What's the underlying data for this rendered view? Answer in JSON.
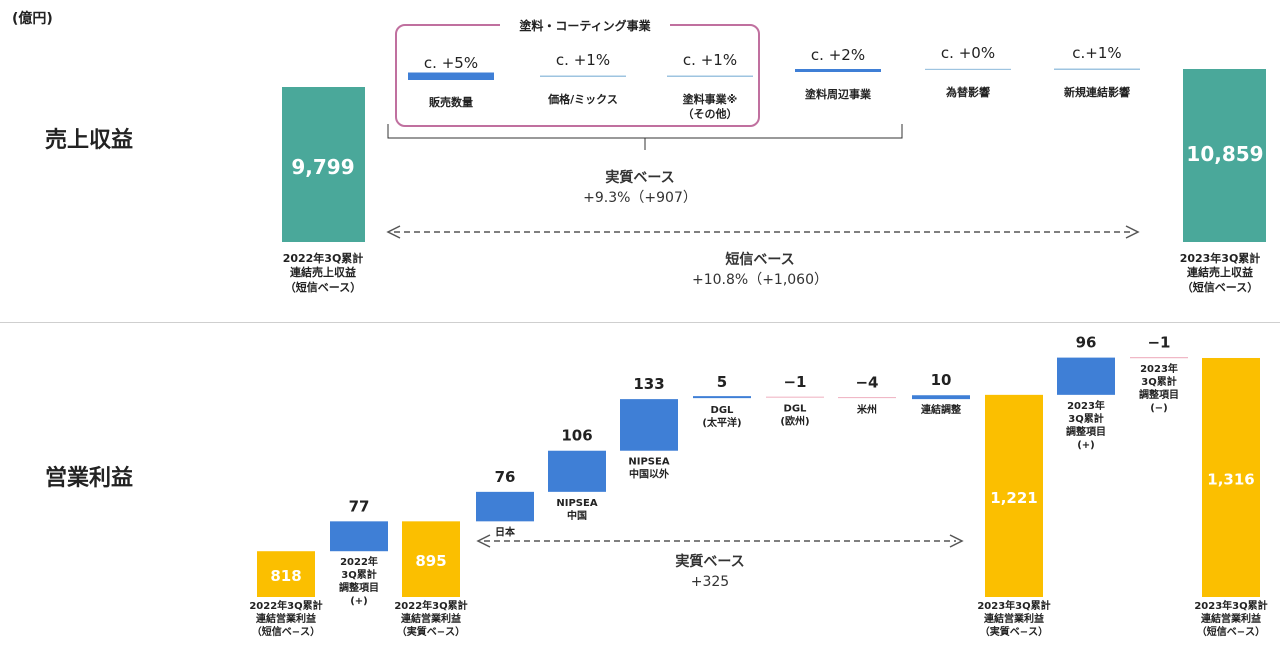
{
  "unit": "(億円)",
  "revenue": {
    "section_label": "売上収益",
    "group_title": "塗料・コーティング事業",
    "base_label": "実質ベース",
    "base_value": "+9.3%（+907）",
    "tanshin_label": "短信ベース",
    "tanshin_value": "+10.8%（+1,060）",
    "start_label": "2022年3Q累計\n連結売上収益\n（短信ベース）",
    "end_label": "2023年3Q累計\n連結売上収益\n（短信ベース）",
    "colors": {
      "total": "#4aa89a",
      "bar": "#3f7fd6",
      "line": "#9ec4e0",
      "border": "#c0709f"
    }
  },
  "profit": {
    "section_label": "営業利益",
    "base_label": "実質ベース",
    "base_value": "+325",
    "bar_labels": [
      "2022年3Q累計\n連結営業利益\n（短信ベ−ス）",
      "2022年\n3Q累計\n調整項目\n(+)",
      "2022年3Q累計\n連結営業利益\n（実質ベ−ス）",
      "日本",
      "NIPSEA\n中国",
      "NIPSEA\n中国以外",
      "DGL\n(太平洋)",
      "DGL\n(欧州)",
      "米州",
      "連結調整",
      "2023年3Q累計\n連結営業利益\n（実質ベ−ス）",
      "2023年\n3Q累計\n調整項目\n(+)",
      "2023年\n3Q累計\n調整項目\n(−)",
      "2023年3Q累計\n連結営業利益\n（短信ベ−ス）"
    ],
    "value_labels": [
      "818",
      "77",
      "895",
      "76",
      "106",
      "133",
      "5",
      "−1",
      "−4",
      "10",
      "1,221",
      "96",
      "−1",
      "1,316"
    ],
    "colors": {
      "total": "#fbbf00",
      "bar": "#3f7fd6",
      "neg_line": "#f0b8c6"
    }
  },
  "chart_data": [
    {
      "type": "bar",
      "title": "売上収益",
      "categories": [
        "2022年3Q累計 連結売上収益（短信ベース）",
        "販売数量",
        "価格/ミックス",
        "塗料事業※（その他）",
        "塗料周辺事業",
        "為替影響",
        "新規連結影響",
        "2023年3Q累計 連結売上収益（短信ベース）"
      ],
      "values": [
        9799,
        5,
        1,
        1,
        2,
        0,
        1,
        10859
      ],
      "value_labels": [
        "9,799",
        "c. +5%",
        "c. +1%",
        "c. +1%",
        "c. +2%",
        "c. +0%",
        "c.+1%",
        "10,859"
      ]
    },
    {
      "type": "bar",
      "title": "営業利益",
      "categories": [
        "2022年3Q累計 連結営業利益（短信ベ−ス）",
        "2022年3Q累計 調整項目(+)",
        "2022年3Q累計 連結営業利益（実質ベ−ス）",
        "日本",
        "NIPSEA 中国",
        "NIPSEA 中国以外",
        "DGL(太平洋)",
        "DGL(欧州)",
        "米州",
        "連結調整",
        "2023年3Q累計 連結営業利益（実質ベ−ス）",
        "2023年3Q累計 調整項目(+)",
        "2023年3Q累計 調整項目(−)",
        "2023年3Q累計 連結営業利益（短信ベ−ス）"
      ],
      "values": [
        818,
        77,
        895,
        76,
        106,
        133,
        5,
        -1,
        -4,
        10,
        1221,
        96,
        -1,
        1316
      ]
    }
  ],
  "revenue_items": [
    {
      "value": "c. +5%",
      "label": "販売数量"
    },
    {
      "value": "c. +1%",
      "label": "価格/ミックス"
    },
    {
      "value": "c. +1%",
      "label": "塗料事業※\n（その他）"
    },
    {
      "value": "c. +2%",
      "label": "塗料周辺事業"
    },
    {
      "value": "c. +0%",
      "label": "為替影響"
    },
    {
      "value": "c.+1%",
      "label": "新規連結影響"
    }
  ]
}
